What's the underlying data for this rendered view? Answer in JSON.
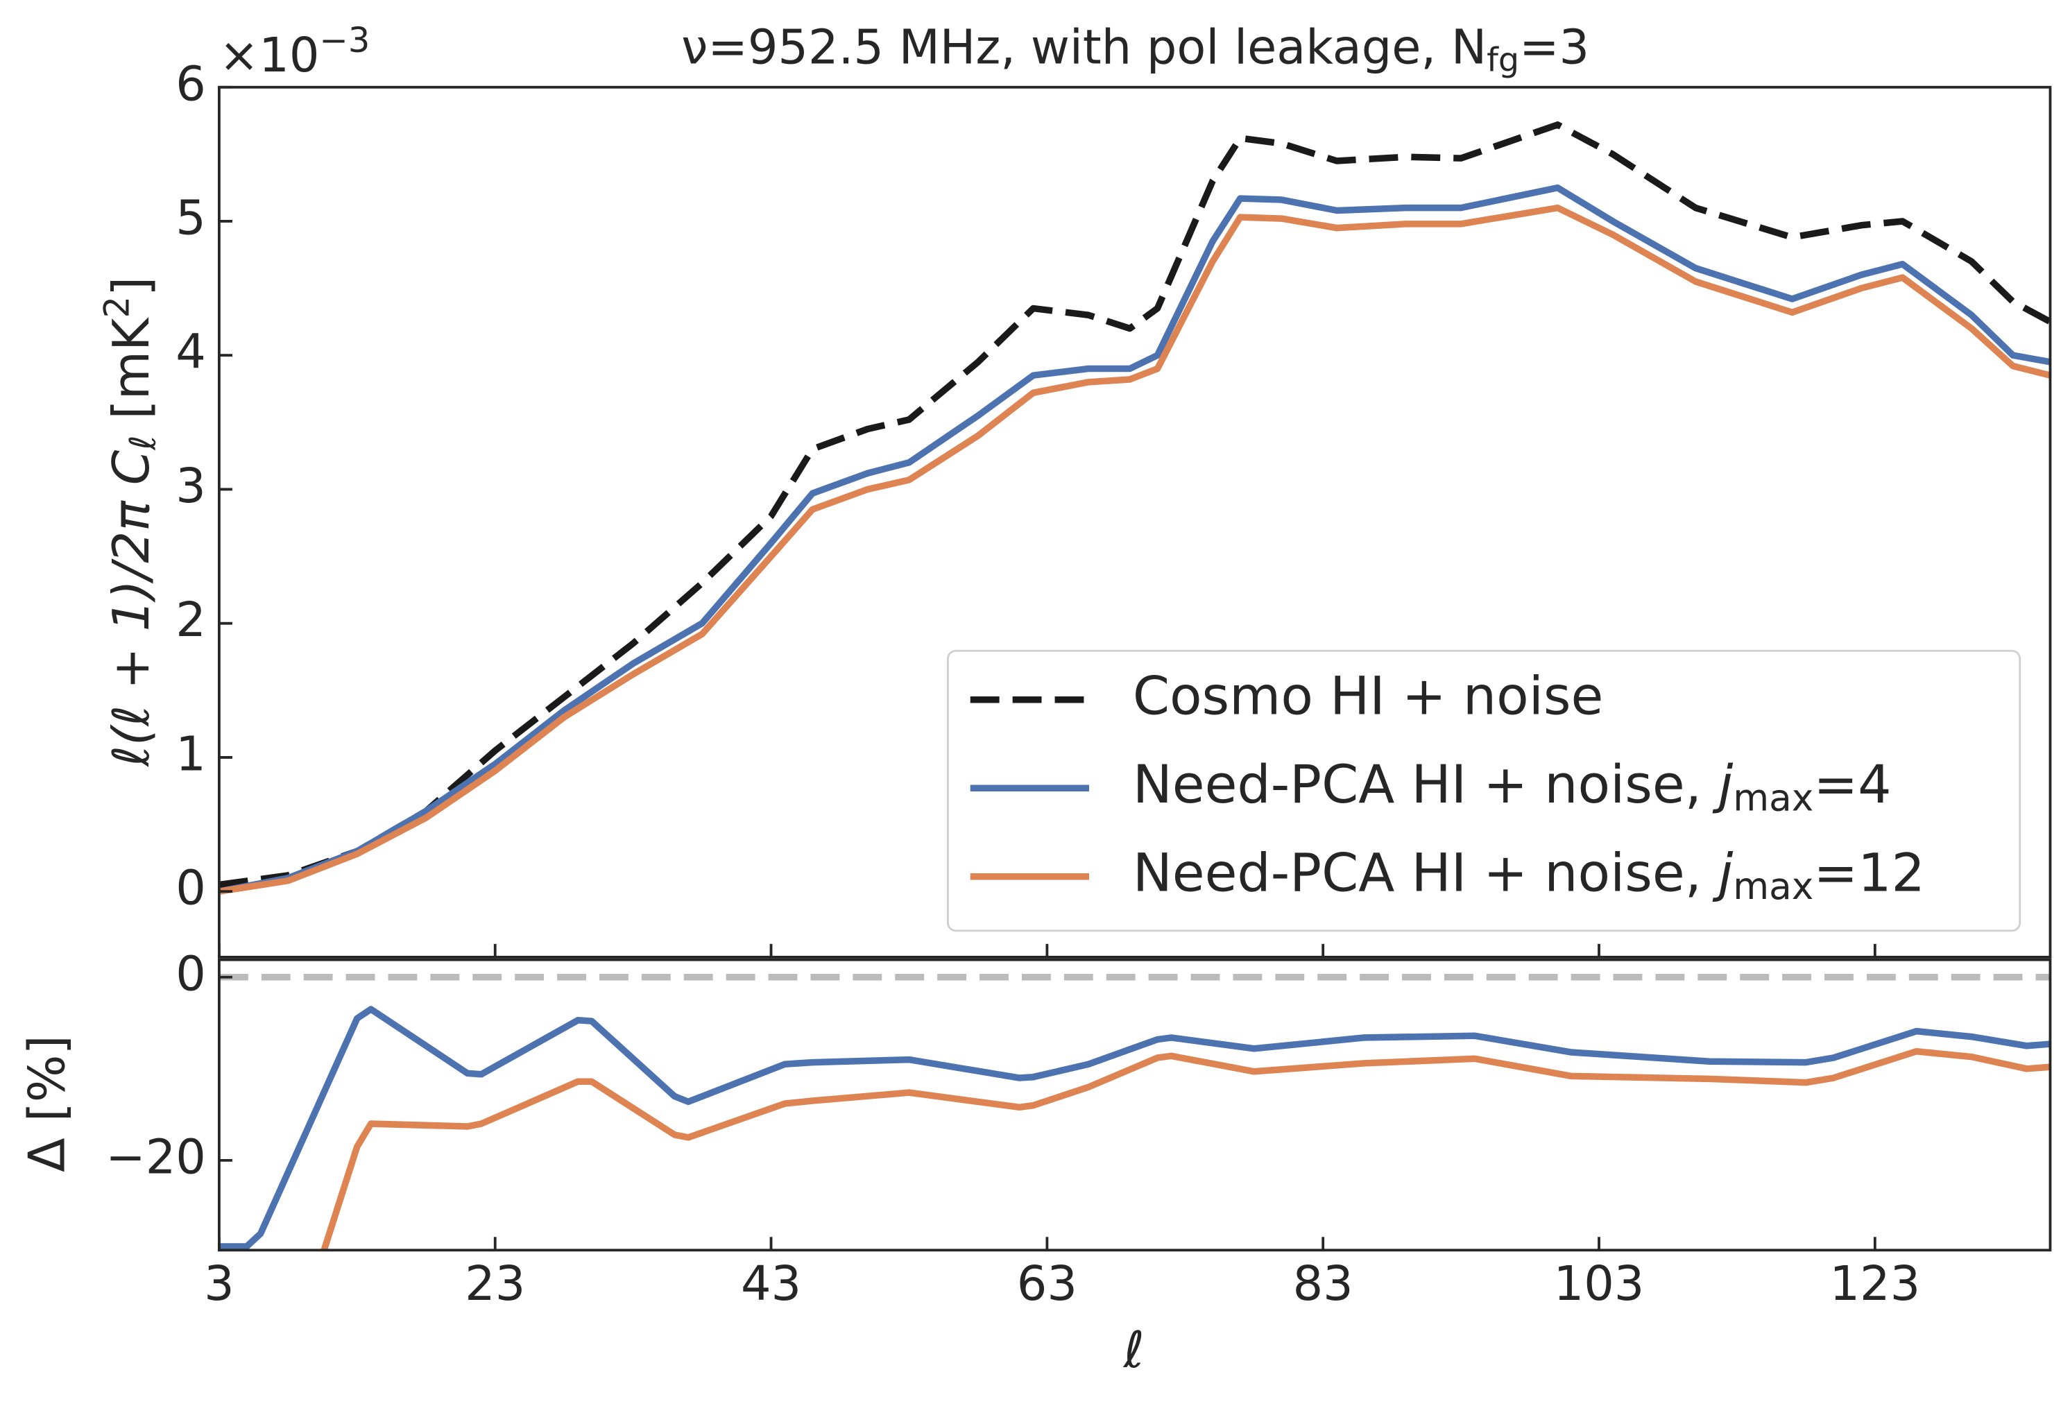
{
  "chart_data": [
    {
      "type": "line",
      "title": [
        "ν=952.5 MHz, with pol leakage, N",
        "fg",
        "=3"
      ],
      "offset_label": [
        "×10",
        "−3"
      ],
      "ylabel": [
        "ℓ(ℓ + 1)/2π C",
        "ℓ",
        " [mK",
        "2",
        "]"
      ],
      "xlim": [
        3,
        135.7
      ],
      "ylim": [
        -0.49,
        6
      ],
      "yticks": [
        0,
        1,
        2,
        3,
        4,
        5,
        6
      ],
      "legend": "lower right",
      "x": [
        3,
        8,
        13,
        18,
        23,
        28,
        33,
        38,
        43,
        46,
        50,
        53,
        58,
        62,
        66,
        69,
        71,
        75,
        77,
        80,
        84,
        89,
        93,
        100,
        104,
        110,
        117,
        122,
        125,
        130,
        133,
        135.7
      ],
      "series": [
        {
          "name": [
            "Cosmo HI + noise"
          ],
          "color": "#1a1a1a",
          "dashed": true,
          "values": [
            0.05,
            0.12,
            0.3,
            0.6,
            1.05,
            1.45,
            1.85,
            2.3,
            2.8,
            3.3,
            3.45,
            3.52,
            3.95,
            4.35,
            4.3,
            4.2,
            4.35,
            5.3,
            5.62,
            5.58,
            5.45,
            5.48,
            5.47,
            5.72,
            5.5,
            5.1,
            4.88,
            4.97,
            5.0,
            4.7,
            4.4,
            4.25
          ]
        },
        {
          "name": [
            "Need-PCA HI + noise, ",
            "j",
            "max",
            "=4"
          ],
          "color": "#4c72b0",
          "values": [
            0.0,
            0.1,
            0.3,
            0.6,
            0.95,
            1.35,
            1.7,
            2.0,
            2.6,
            2.97,
            3.12,
            3.2,
            3.55,
            3.85,
            3.9,
            3.9,
            4.0,
            4.85,
            5.17,
            5.16,
            5.08,
            5.1,
            5.1,
            5.25,
            5.0,
            4.65,
            4.42,
            4.6,
            4.68,
            4.3,
            4.0,
            3.95
          ]
        },
        {
          "name": [
            "Need-PCA HI + noise, ",
            "j",
            "max",
            "=12"
          ],
          "color": "#dd8452",
          "values": [
            0.0,
            0.08,
            0.28,
            0.55,
            0.9,
            1.3,
            1.62,
            1.92,
            2.5,
            2.85,
            3.0,
            3.07,
            3.4,
            3.72,
            3.8,
            3.82,
            3.9,
            4.7,
            5.03,
            5.02,
            4.95,
            4.98,
            4.98,
            5.1,
            4.9,
            4.55,
            4.32,
            4.5,
            4.58,
            4.2,
            3.92,
            3.85
          ]
        }
      ]
    },
    {
      "type": "line",
      "xlabel": "ℓ",
      "ylabel": "Δ [%]",
      "xlim": [
        3,
        135.7
      ],
      "xticks": [
        3,
        23,
        43,
        63,
        83,
        103,
        123
      ],
      "ylim": [
        -29.8,
        1.9
      ],
      "yticks": [
        {
          "value": -20,
          "label": "−20"
        },
        0
      ],
      "hline": 0,
      "hline_color": "#bbbbbb",
      "series": [
        {
          "color": "#4c72b0",
          "x": [
            3,
            5,
            6,
            13,
            14,
            21,
            22,
            29,
            30,
            36,
            37,
            44,
            46,
            53,
            61,
            62,
            66,
            71,
            72,
            78,
            86,
            94,
            101,
            111,
            118,
            120,
            126,
            130,
            134,
            135.7
          ],
          "values": [
            -29.4,
            -29.4,
            -28,
            -4.5,
            -3.5,
            -10.5,
            -10.6,
            -4.7,
            -4.8,
            -13,
            -13.6,
            -9.5,
            -9.3,
            -9,
            -11,
            -10.9,
            -9.5,
            -6.8,
            -6.6,
            -7.8,
            -6.6,
            -6.4,
            -8.2,
            -9.2,
            -9.3,
            -8.8,
            -5.9,
            -6.5,
            -7.5,
            -7.3
          ]
        },
        {
          "color": "#dd8452",
          "x": [
            10.6,
            13,
            14,
            21,
            22,
            29,
            30,
            36,
            37,
            44,
            46,
            53,
            61,
            62,
            66,
            71,
            72,
            78,
            86,
            94,
            101,
            111,
            118,
            120,
            126,
            130,
            134,
            135.7
          ],
          "values": [
            -29.8,
            -18.5,
            -16,
            -16.3,
            -16,
            -11.4,
            -11.4,
            -17.2,
            -17.5,
            -13.8,
            -13.5,
            -12.6,
            -14.2,
            -14,
            -12,
            -8.8,
            -8.6,
            -10.3,
            -9.4,
            -8.9,
            -10.8,
            -11.1,
            -11.5,
            -11,
            -8.1,
            -8.7,
            -10,
            -9.8
          ]
        }
      ]
    }
  ]
}
